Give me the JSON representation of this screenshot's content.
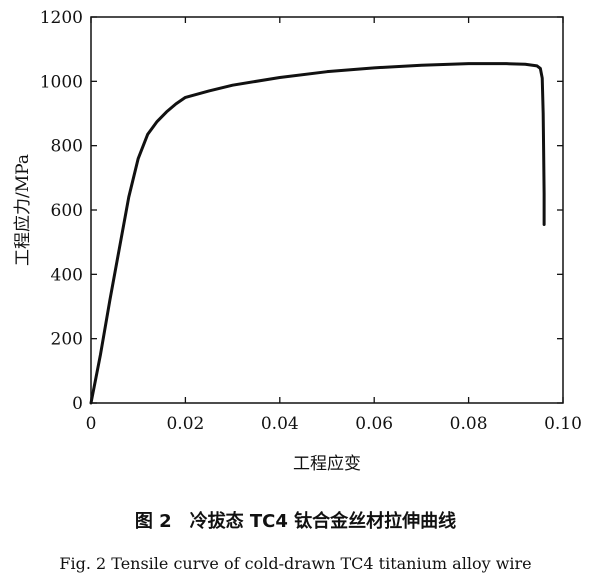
{
  "chart_data": {
    "type": "line",
    "title": "",
    "xlabel": "工程应变",
    "ylabel": "工程应力/MPa",
    "xlim": [
      0,
      0.1
    ],
    "ylim": [
      0,
      1200
    ],
    "xticks": [
      0,
      0.02,
      0.04,
      0.06,
      0.08,
      0.1
    ],
    "xtick_labels": [
      "0",
      "0.02",
      "0.04",
      "0.06",
      "0.08",
      "0.10"
    ],
    "yticks": [
      0,
      200,
      400,
      600,
      800,
      1000,
      1200
    ],
    "ytick_labels": [
      "0",
      "200",
      "400",
      "600",
      "800",
      "1000",
      "1200"
    ],
    "grid": false,
    "legend": "none",
    "series": [
      {
        "color": "#111111",
        "points": [
          [
            0.0,
            0
          ],
          [
            0.002,
            150
          ],
          [
            0.004,
            320
          ],
          [
            0.006,
            480
          ],
          [
            0.008,
            640
          ],
          [
            0.01,
            760
          ],
          [
            0.012,
            835
          ],
          [
            0.014,
            875
          ],
          [
            0.016,
            905
          ],
          [
            0.018,
            930
          ],
          [
            0.02,
            950
          ],
          [
            0.025,
            970
          ],
          [
            0.03,
            988
          ],
          [
            0.04,
            1012
          ],
          [
            0.05,
            1030
          ],
          [
            0.06,
            1042
          ],
          [
            0.07,
            1050
          ],
          [
            0.08,
            1055
          ],
          [
            0.088,
            1055
          ],
          [
            0.092,
            1053
          ],
          [
            0.0945,
            1048
          ],
          [
            0.0952,
            1040
          ],
          [
            0.0956,
            1010
          ],
          [
            0.0958,
            900
          ],
          [
            0.0959,
            780
          ],
          [
            0.096,
            650
          ],
          [
            0.096,
            555
          ]
        ]
      }
    ]
  },
  "caption": {
    "cn": "图 2　冷拔态 TC4 钛合金丝材拉伸曲线",
    "en": "Fig. 2 Tensile curve of cold-drawn TC4 titanium alloy wire"
  }
}
